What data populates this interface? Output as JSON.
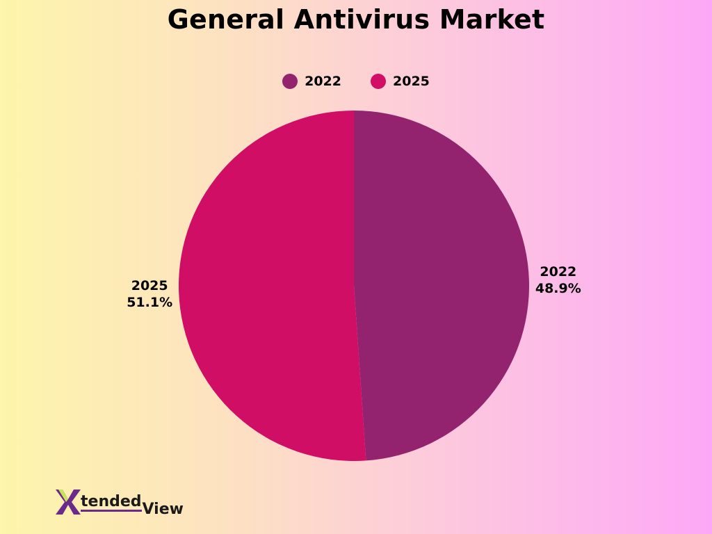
{
  "chart_data": {
    "type": "pie",
    "title": "General Antivirus Market",
    "legend_position": "top-center",
    "slices": [
      {
        "label": "2022",
        "value": 48.9,
        "display": "48.9%",
        "color": "#93226f"
      },
      {
        "label": "2025",
        "value": 51.1,
        "display": "51.1%",
        "color": "#d00e66"
      }
    ]
  },
  "logo": {
    "text_main": "tended",
    "text_sub": "View",
    "lettering": "XtendedView",
    "colors": {
      "primary": "#6a2a8c",
      "accent": "#c6e35a"
    }
  }
}
